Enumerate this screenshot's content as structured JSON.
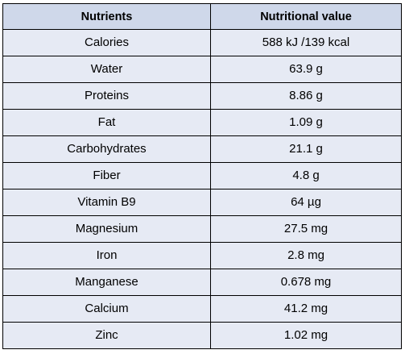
{
  "table": {
    "headers": [
      "Nutrients",
      "Nutritional value"
    ],
    "rows": [
      [
        "Calories",
        "588 kJ /139 kcal"
      ],
      [
        "Water",
        "63.9 g"
      ],
      [
        "Proteins",
        "8.86 g"
      ],
      [
        "Fat",
        "1.09 g"
      ],
      [
        "Carbohydrates",
        "21.1 g"
      ],
      [
        "Fiber",
        "4.8 g"
      ],
      [
        "Vitamin B9",
        "64 µg"
      ],
      [
        "Magnesium",
        "27.5 mg"
      ],
      [
        "Iron",
        "2.8 mg"
      ],
      [
        "Manganese",
        "0.678 mg"
      ],
      [
        "Calcium",
        "41.2 mg"
      ],
      [
        "Zinc",
        "1.02 mg"
      ]
    ]
  },
  "colors": {
    "header_bg": "#cfd8ea",
    "row_bg": "#e6eaf4",
    "border": "#000000"
  }
}
